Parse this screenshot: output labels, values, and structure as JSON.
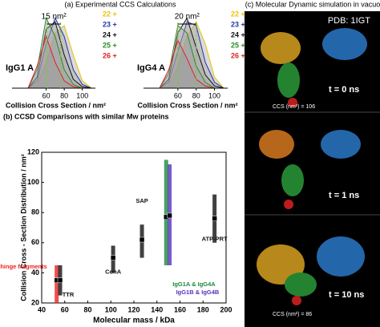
{
  "chart_data": [
    {
      "type": "area",
      "title": "(a) Experimental CCS Calculations",
      "label": "IgG1 A",
      "xlabel": "Collision Cross Section / nm²",
      "x": [
        40,
        50,
        60,
        70,
        80,
        90,
        100,
        110
      ],
      "xlim": [
        40,
        110
      ],
      "xticks": [
        60,
        80,
        100
      ],
      "ylim": [
        0,
        1
      ],
      "annotation": {
        "text": "15 nm²",
        "x": [
          61,
          76
        ]
      },
      "series": [
        {
          "name": "22 +",
          "color": "#e8c400",
          "values": [
            0,
            0.05,
            0.35,
            0.75,
            0.85,
            0.45,
            0.1,
            0
          ]
        },
        {
          "name": "23 +",
          "color": "#2233aa",
          "values": [
            0,
            0.1,
            0.6,
            0.95,
            0.7,
            0.25,
            0.05,
            0
          ]
        },
        {
          "name": "24 +",
          "color": "#111111",
          "values": [
            0,
            0.15,
            0.8,
            0.9,
            0.45,
            0.12,
            0.02,
            0
          ]
        },
        {
          "name": "25 +",
          "color": "#2a8a2a",
          "values": [
            0,
            0.25,
            0.95,
            0.7,
            0.25,
            0.05,
            0,
            0
          ]
        },
        {
          "name": "26 +",
          "color": "#dd2222",
          "values": [
            0,
            0.3,
            0.7,
            0.35,
            0.1,
            0.02,
            0,
            0
          ]
        }
      ]
    },
    {
      "type": "area",
      "label": "IgG4 A",
      "xlabel": "Collision Cross Section / nm²",
      "x": [
        40,
        50,
        60,
        70,
        80,
        90,
        100,
        110
      ],
      "xlim": [
        40,
        110
      ],
      "xticks": [
        60,
        80,
        100
      ],
      "ylim": [
        0,
        1
      ],
      "annotation": {
        "text": "20 nm²",
        "x": [
          60,
          80
        ]
      },
      "series": [
        {
          "name": "22 +",
          "color": "#e8c400",
          "values": [
            0,
            0.03,
            0.3,
            0.7,
            0.9,
            0.6,
            0.15,
            0
          ]
        },
        {
          "name": "23 +",
          "color": "#2233aa",
          "values": [
            0,
            0.08,
            0.5,
            0.9,
            0.85,
            0.35,
            0.08,
            0
          ]
        },
        {
          "name": "24 +",
          "color": "#111111",
          "values": [
            0,
            0.12,
            0.75,
            0.95,
            0.55,
            0.18,
            0.03,
            0
          ]
        },
        {
          "name": "25 +",
          "color": "#2a8a2a",
          "values": [
            0,
            0.2,
            0.85,
            0.75,
            0.3,
            0.08,
            0,
            0
          ]
        },
        {
          "name": "26 +",
          "color": "#dd2222",
          "values": [
            0,
            0.25,
            0.65,
            0.4,
            0.12,
            0.03,
            0,
            0
          ]
        }
      ]
    },
    {
      "type": "range",
      "title": "(b) CCSD Comparisons with similar Mw proteins",
      "xlabel": "Molecular mass / kDa",
      "ylabel": "Collision Cross - Section Distribution / nm²",
      "xlim": [
        40,
        200
      ],
      "xticks": [
        40,
        60,
        80,
        100,
        120,
        140,
        160,
        180,
        200
      ],
      "ylim": [
        20,
        120
      ],
      "yticks": [
        20,
        40,
        60,
        80,
        100,
        120
      ],
      "labels": [
        "Fc-hinge fragments",
        "TTR",
        "ConA",
        "SAP",
        "IgG1A & IgG4A",
        "IgG1B & IgG4B",
        "ATP-PRT"
      ],
      "colors": [
        "#ee2222",
        "#111111",
        "#111111",
        "#111111",
        "#1a8a3a",
        "#5533bb",
        "#111111"
      ],
      "x": [
        53,
        56,
        102,
        127,
        148,
        151,
        190
      ],
      "low": [
        20,
        25,
        40,
        50,
        45,
        45,
        60
      ],
      "high": [
        45,
        45,
        58,
        72,
        115,
        112,
        92
      ],
      "center": [
        35,
        35,
        50,
        62,
        77,
        78,
        76
      ]
    }
  ],
  "panel_c": {
    "title": "(c) Molecular Dynamic simulation in vacuo",
    "pdb": "PDB: 1IGT",
    "frames": [
      {
        "time": "t = 0 ns",
        "ccs": "CCS (nm²) = 106"
      },
      {
        "time": "t = 1 ns"
      },
      {
        "time": "t = 10 ns",
        "ccs": "CCS (nm²) = 86"
      }
    ]
  }
}
